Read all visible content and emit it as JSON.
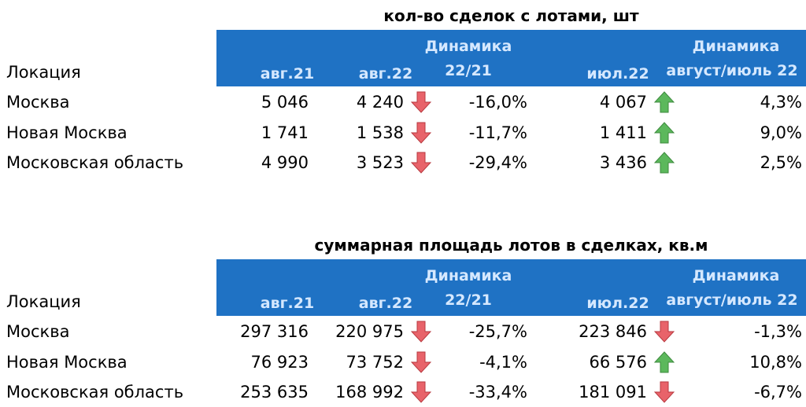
{
  "tables": [
    {
      "title": "кол-во сделок с лотами, шт",
      "headers": {
        "location": "Локация",
        "aug21": "авг.21",
        "aug22": "авг.22",
        "dyn1_line1": "Динамика",
        "dyn1_line2": "22/21",
        "jul22": "июл.22",
        "dyn2_line1": "Динамика",
        "dyn2_line2": "август/июль 22"
      },
      "rows": [
        {
          "location": "Москва",
          "aug21": "5 046",
          "aug22": "4 240",
          "arrow1": "down",
          "dyn1": "-16,0%",
          "jul22": "4 067",
          "arrow2": "up",
          "dyn2": "4,3%"
        },
        {
          "location": "Новая Москва",
          "aug21": "1 741",
          "aug22": "1 538",
          "arrow1": "down",
          "dyn1": "-11,7%",
          "jul22": "1 411",
          "arrow2": "up",
          "dyn2": "9,0%"
        },
        {
          "location": "Московская область",
          "aug21": "4 990",
          "aug22": "3 523",
          "arrow1": "down",
          "dyn1": "-29,4%",
          "jul22": "3 436",
          "arrow2": "up",
          "dyn2": "2,5%"
        }
      ]
    },
    {
      "title": "суммарная площадь лотов в сделках, кв.м",
      "headers": {
        "location": "Локация",
        "aug21": "авг.21",
        "aug22": "авг.22",
        "dyn1_line1": "Динамика",
        "dyn1_line2": "22/21",
        "jul22": "июл.22",
        "dyn2_line1": "Динамика",
        "dyn2_line2": "август/июль 22"
      },
      "rows": [
        {
          "location": "Москва",
          "aug21": "297 316",
          "aug22": "220 975",
          "arrow1": "down",
          "dyn1": "-25,7%",
          "jul22": "223 846",
          "arrow2": "down",
          "dyn2": "-1,3%"
        },
        {
          "location": "Новая Москва",
          "aug21": "76 923",
          "aug22": "73 752",
          "arrow1": "down",
          "dyn1": "-4,1%",
          "jul22": "66 576",
          "arrow2": "up",
          "dyn2": "10,8%"
        },
        {
          "location": "Московская область",
          "aug21": "253 635",
          "aug22": "168 992",
          "arrow1": "down",
          "dyn1": "-33,4%",
          "jul22": "181 091",
          "arrow2": "down",
          "dyn2": "-6,7%"
        }
      ]
    }
  ],
  "colors": {
    "header_bg": "#1f72c4",
    "header_text": "#d5e8ff",
    "arrow_down": "#e8636a",
    "arrow_up": "#5cb85c"
  }
}
